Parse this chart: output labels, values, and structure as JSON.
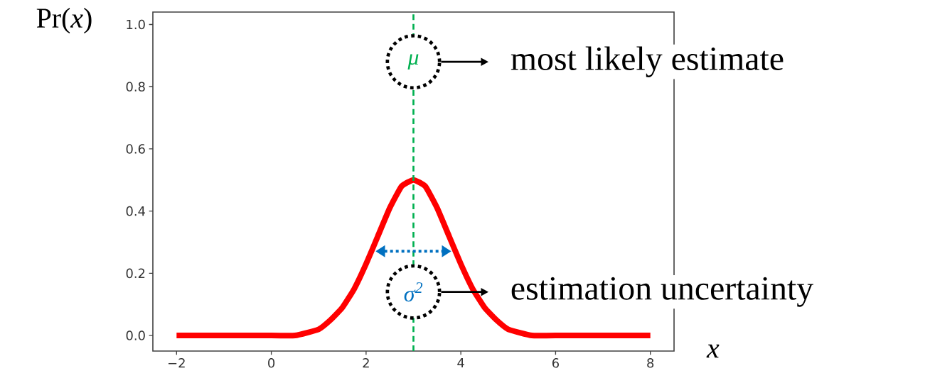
{
  "chart_data": {
    "type": "line",
    "xlabel": "x",
    "ylabel": "Pr(*x*)",
    "x": [
      -2,
      0,
      0.5,
      1,
      1.25,
      1.5,
      1.75,
      2,
      2.25,
      2.5,
      2.75,
      3,
      3.25,
      3.5,
      3.75,
      4,
      4.25,
      4.5,
      4.75,
      5,
      5.5,
      6,
      8
    ],
    "series": [
      {
        "color": "#ff0000",
        "values": [
          0,
          0,
          0,
          0.02,
          0.05,
          0.09,
          0.15,
          0.23,
          0.32,
          0.41,
          0.48,
          0.5,
          0.48,
          0.41,
          0.32,
          0.23,
          0.15,
          0.09,
          0.05,
          0.02,
          0,
          0,
          0
        ]
      }
    ],
    "xlim": [
      -2.5,
      8.5
    ],
    "ylim": [
      -0.05,
      1.04
    ],
    "xticks": [
      {
        "value": -2,
        "label": "−2"
      },
      0,
      2,
      4,
      6,
      8
    ],
    "yticks": [
      {
        "value": 0,
        "label": "0.0"
      },
      {
        "value": 0.2,
        "label": "0.2"
      },
      {
        "value": 0.4,
        "label": "0.4"
      },
      {
        "value": 0.6,
        "label": "0.6"
      },
      {
        "value": 0.8,
        "label": "0.8"
      },
      {
        "value": 1,
        "label": "1.0"
      }
    ],
    "ref_lines": [
      {
        "axis": "x",
        "value": 3,
        "color": "#00b050",
        "line_style": "dashed"
      }
    ],
    "annotations": [
      {
        "text": "μ",
        "x": 3,
        "y": 0.88
      },
      "most likely estimate",
      {
        "text": "σ$^{2}$",
        "x": 3,
        "y": 0.14
      },
      "estimation uncertainty"
    ],
    "grid": false,
    "marker": "none",
    "line_style": "solid"
  }
}
